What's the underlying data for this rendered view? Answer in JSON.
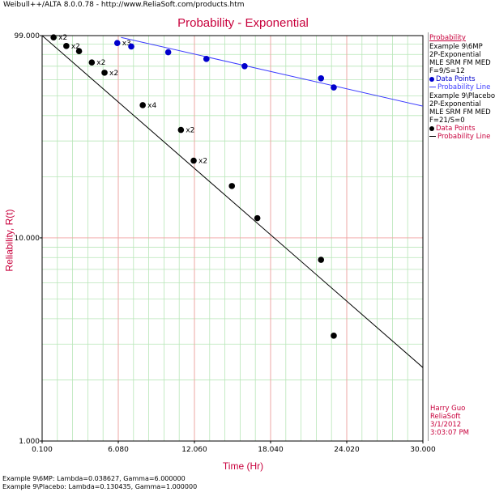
{
  "window": {
    "title": "Weibull++/ALTA 8.0.0.78 - http://www.ReliaSoft.com/products.htm"
  },
  "chart_data": {
    "type": "scatter",
    "title": "Probability - Exponential",
    "xlabel": "Time (Hr)",
    "ylabel": "Reliability, R(t)",
    "xlim": [
      0.1,
      30.0
    ],
    "ylim": [
      1.0,
      99.0
    ],
    "yscale": "log",
    "grid": true,
    "x_ticks": [
      "0.100",
      "6.080",
      "12.060",
      "18.040",
      "24.020",
      "30.000"
    ],
    "y_ticks": [
      "1.000",
      "10.000",
      "99.000"
    ],
    "legend_position": "right",
    "series": [
      {
        "name": "Example 9\\6MP",
        "color": "#0000cc",
        "line_color": "#3b3bff",
        "points": [
          {
            "x": 6.0,
            "y": 91.0,
            "label": "x3"
          },
          {
            "x": 7.1,
            "y": 87.5,
            "label": ""
          },
          {
            "x": 10.0,
            "y": 82.0,
            "label": ""
          },
          {
            "x": 13.0,
            "y": 76.0,
            "label": ""
          },
          {
            "x": 16.0,
            "y": 70.0,
            "label": ""
          },
          {
            "x": 22.0,
            "y": 61.0,
            "label": ""
          },
          {
            "x": 23.0,
            "y": 55.0,
            "label": ""
          }
        ],
        "line": [
          [
            6.3,
            97.0
          ],
          [
            30.0,
            44.5
          ]
        ]
      },
      {
        "name": "Example 9\\Placebo",
        "color": "#000000",
        "line_color": "#000000",
        "points": [
          {
            "x": 1.0,
            "y": 97.0,
            "label": "x2"
          },
          {
            "x": 2.0,
            "y": 88.0,
            "label": "x2"
          },
          {
            "x": 3.0,
            "y": 83.0,
            "label": ""
          },
          {
            "x": 4.0,
            "y": 73.0,
            "label": "x2"
          },
          {
            "x": 5.0,
            "y": 65.0,
            "label": "x2"
          },
          {
            "x": 8.0,
            "y": 45.0,
            "label": "x4"
          },
          {
            "x": 11.0,
            "y": 34.0,
            "label": "x2"
          },
          {
            "x": 12.0,
            "y": 24.0,
            "label": "x2"
          },
          {
            "x": 15.0,
            "y": 18.0,
            "label": ""
          },
          {
            "x": 17.0,
            "y": 12.5,
            "label": ""
          },
          {
            "x": 22.0,
            "y": 7.8,
            "label": ""
          },
          {
            "x": 23.0,
            "y": 3.3,
            "label": ""
          }
        ],
        "line": [
          [
            0.1,
            99.0
          ],
          [
            30.0,
            2.3
          ]
        ]
      }
    ]
  },
  "legend": {
    "header": "Probability",
    "blocks": [
      {
        "lines": [
          "Example 9\\6MP",
          "2P-Exponential",
          "MLE SRM FM MED",
          "F=9/S=12"
        ],
        "points_label": "Data Points",
        "line_label": "Probability Line",
        "dot_color": "#0000cc",
        "line_color": "#3b3bff"
      },
      {
        "lines": [
          "Example 9\\Placebo",
          "2P-Exponential",
          "MLE SRM FM MED",
          "F=21/S=0"
        ],
        "points_label": "Data Points",
        "line_label": "Probability Line",
        "dot_color": "#000000",
        "line_color": "#000000"
      }
    ]
  },
  "author": {
    "name": "Harry Guo",
    "company": "ReliaSoft",
    "date": "3/1/2012",
    "time": "3:03:07 PM"
  },
  "footer": [
    "Example 9\\6MP: Lambda=0.038627, Gamma=6.000000",
    "Example 9\\Placebo: Lambda=0.130435, Gamma=1.000000"
  ]
}
